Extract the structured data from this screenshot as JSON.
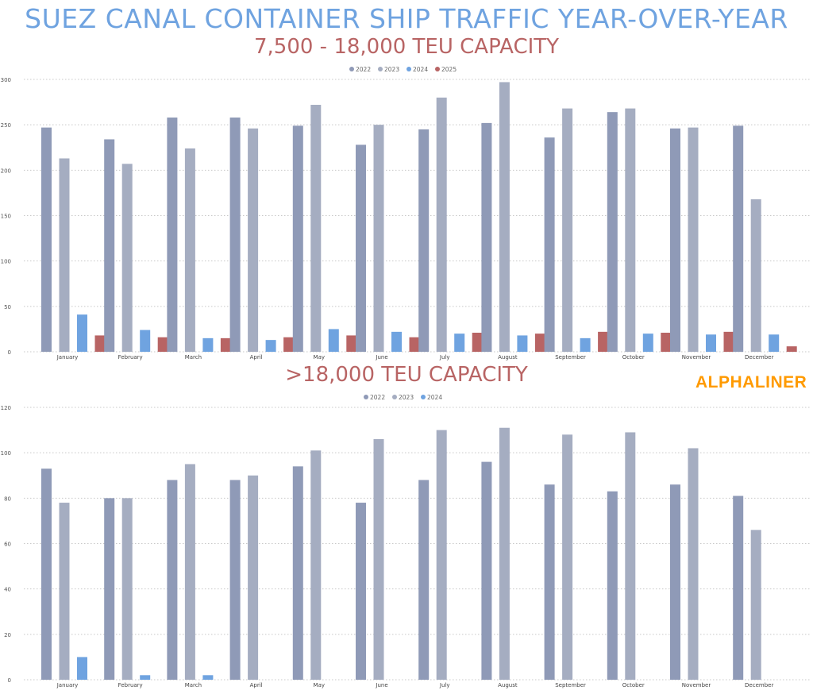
{
  "header": {
    "title": "SUEZ CANAL CONTAINER SHIP TRAFFIC YEAR-OVER-YEAR",
    "logo": "ALPHALINER"
  },
  "colors": {
    "2022": "#8f9ab7",
    "2023": "#a5adc1",
    "2024": "#6fa3e0",
    "2025": "#b86464",
    "title": "#6fa3e0",
    "subtitle": "#b86464",
    "logo": "#ff9a00"
  },
  "chart_data": [
    {
      "type": "bar",
      "title": "7,500 - 18,000 TEU CAPACITY",
      "categories": [
        "January",
        "February",
        "March",
        "April",
        "May",
        "June",
        "July",
        "August",
        "September",
        "October",
        "November",
        "December"
      ],
      "ylim": [
        0,
        300
      ],
      "yticks": [
        0,
        50,
        100,
        150,
        200,
        250,
        300
      ],
      "grid": true,
      "legend": "top-center",
      "series": [
        {
          "name": "2022",
          "values": [
            247,
            234,
            258,
            258,
            249,
            228,
            245,
            252,
            236,
            264,
            246,
            249
          ]
        },
        {
          "name": "2023",
          "values": [
            213,
            207,
            224,
            246,
            272,
            250,
            280,
            297,
            268,
            268,
            247,
            168
          ]
        },
        {
          "name": "2024",
          "values": [
            41,
            24,
            15,
            13,
            25,
            22,
            20,
            18,
            15,
            20,
            19,
            19
          ]
        },
        {
          "name": "2025",
          "values": [
            18,
            16,
            15,
            16,
            18,
            16,
            21,
            20,
            22,
            21,
            22,
            6
          ]
        }
      ]
    },
    {
      "type": "bar",
      "title": ">18,000 TEU CAPACITY",
      "categories": [
        "January",
        "February",
        "March",
        "April",
        "May",
        "June",
        "July",
        "August",
        "September",
        "October",
        "November",
        "December"
      ],
      "ylim": [
        0,
        120
      ],
      "yticks": [
        0,
        20,
        40,
        60,
        80,
        100,
        120
      ],
      "grid": true,
      "legend": "top-center",
      "series": [
        {
          "name": "2022",
          "values": [
            93,
            80,
            88,
            88,
            94,
            78,
            88,
            96,
            86,
            83,
            86,
            81
          ]
        },
        {
          "name": "2023",
          "values": [
            78,
            80,
            95,
            90,
            101,
            106,
            110,
            111,
            108,
            109,
            102,
            66
          ]
        },
        {
          "name": "2024",
          "values": [
            10,
            2,
            2,
            0,
            0,
            0,
            0,
            0,
            0,
            0,
            0,
            0
          ]
        }
      ]
    }
  ]
}
